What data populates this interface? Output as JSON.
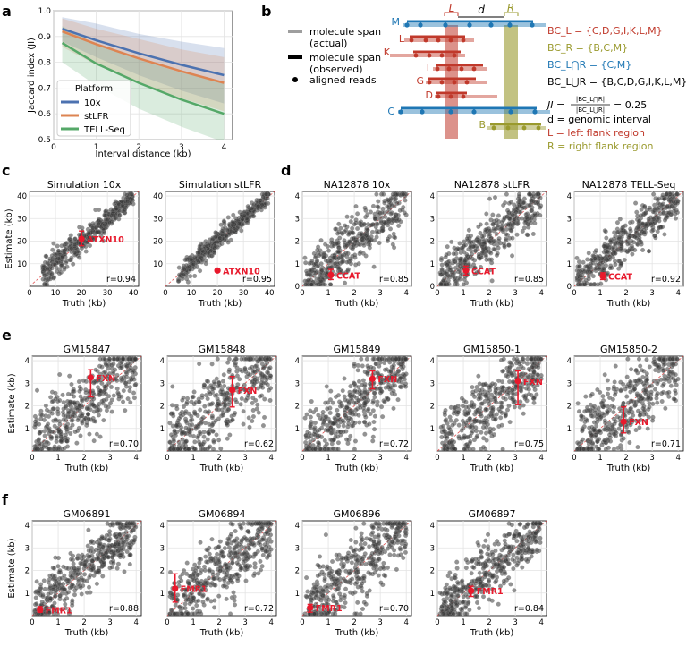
{
  "panel_labels": {
    "a": "a",
    "b": "b",
    "c": "c",
    "d": "d",
    "e": "e",
    "f": "f"
  },
  "chart_data": [
    {
      "id": "a",
      "type": "line",
      "xlabel": "Interval distance (kb)",
      "ylabel": "Jaccard index (JI)",
      "xlim": [
        0,
        4.2
      ],
      "ylim": [
        0.5,
        1.0
      ],
      "xticks": [
        0,
        1,
        2,
        3,
        4
      ],
      "yticks": [
        0.5,
        0.6,
        0.7,
        0.8,
        0.9,
        1.0
      ],
      "legend_title": "Platform",
      "legend_position": "lower-left",
      "x": [
        0.2,
        1.0,
        2.0,
        3.0,
        4.0
      ],
      "series": [
        {
          "name": "10x",
          "color": "#4c72b0",
          "values": [
            0.93,
            0.885,
            0.835,
            0.79,
            0.75
          ],
          "lower": [
            0.88,
            0.82,
            0.75,
            0.69,
            0.64
          ],
          "upper": [
            0.975,
            0.95,
            0.91,
            0.88,
            0.855
          ]
        },
        {
          "name": "stLFR",
          "color": "#dd8452",
          "values": [
            0.92,
            0.87,
            0.815,
            0.765,
            0.72
          ],
          "lower": [
            0.86,
            0.79,
            0.72,
            0.66,
            0.61
          ],
          "upper": [
            0.97,
            0.93,
            0.89,
            0.85,
            0.82
          ]
        },
        {
          "name": "TELL-Seq",
          "color": "#55a868",
          "values": [
            0.875,
            0.795,
            0.72,
            0.655,
            0.6
          ],
          "lower": [
            0.8,
            0.71,
            0.62,
            0.55,
            0.49
          ],
          "upper": [
            0.94,
            0.87,
            0.81,
            0.76,
            0.72
          ]
        }
      ]
    },
    {
      "id": "c1",
      "type": "scatter",
      "title": "Simulation 10x",
      "xlabel": "Truth (kb)",
      "ylabel": "Estimate (kb)",
      "xlim": [
        0,
        42
      ],
      "ylim": [
        0,
        42
      ],
      "xticks": [
        0,
        10,
        20,
        30,
        40
      ],
      "yticks": [
        10,
        20,
        30,
        40
      ],
      "r": "r=0.94",
      "gene": "ATXN10",
      "point": [
        20,
        21
      ],
      "err": [
        18,
        24.5
      ],
      "spread": 0.11
    },
    {
      "id": "c2",
      "type": "scatter",
      "title": "Simulation stLFR",
      "xlabel": "Truth (kb)",
      "ylabel": "",
      "xlim": [
        0,
        42
      ],
      "ylim": [
        0,
        42
      ],
      "xticks": [
        0,
        10,
        20,
        30,
        40
      ],
      "yticks": [
        10,
        20,
        30,
        40
      ],
      "r": "r=0.95",
      "gene": "ATXN10",
      "point": [
        20,
        7
      ],
      "err": null,
      "spread": 0.09
    },
    {
      "id": "d1",
      "type": "scatter",
      "title": "NA12878 10x",
      "xlabel": "Truth (kb)",
      "ylabel": "",
      "xlim": [
        0,
        4.2
      ],
      "ylim": [
        0,
        4.2
      ],
      "xticks": [
        0,
        1,
        2,
        3,
        4
      ],
      "yticks": [
        0,
        1,
        2,
        3,
        4
      ],
      "r": "r=0.85",
      "gene": "CCAT",
      "point": [
        1.1,
        0.5
      ],
      "err": [
        0.3,
        0.75
      ],
      "spread": 0.16
    },
    {
      "id": "d2",
      "type": "scatter",
      "title": "NA12878 stLFR",
      "xlabel": "Truth (kb)",
      "ylabel": "",
      "xlim": [
        0,
        4.2
      ],
      "ylim": [
        0,
        4.2
      ],
      "xticks": [
        0,
        1,
        2,
        3,
        4
      ],
      "yticks": [
        0,
        1,
        2,
        3,
        4
      ],
      "r": "r=0.85",
      "gene": "CCAT",
      "point": [
        1.1,
        0.7
      ],
      "err": [
        0.5,
        0.9
      ],
      "spread": 0.16
    },
    {
      "id": "d3",
      "type": "scatter",
      "title": "NA12878 TELL-Seq",
      "xlabel": "Truth (kb)",
      "ylabel": "",
      "xlim": [
        0,
        4.2
      ],
      "ylim": [
        0,
        4.2
      ],
      "xticks": [
        0,
        1,
        2,
        3,
        4
      ],
      "yticks": [
        0,
        1,
        2,
        3,
        4
      ],
      "r": "r=0.92",
      "gene": "CCAT",
      "point": [
        1.1,
        0.45
      ],
      "err": [
        0.3,
        0.6
      ],
      "spread": 0.12
    },
    {
      "id": "e1",
      "type": "scatter",
      "title": "GM15847",
      "xlabel": "Truth (kb)",
      "ylabel": "Estimate (kb)",
      "xlim": [
        0,
        4.2
      ],
      "ylim": [
        0,
        4.2
      ],
      "xticks": [
        0,
        1,
        2,
        3,
        4
      ],
      "yticks": [
        1,
        2,
        3,
        4
      ],
      "r": "r=0.70",
      "gene": "FXN",
      "point": [
        2.25,
        3.25
      ],
      "err": [
        2.4,
        3.6
      ],
      "spread": 0.22
    },
    {
      "id": "e2",
      "type": "scatter",
      "title": "GM15848",
      "xlabel": "Truth (kb)",
      "ylabel": "",
      "xlim": [
        0,
        4.2
      ],
      "ylim": [
        0,
        4.2
      ],
      "xticks": [
        0,
        1,
        2,
        3,
        4
      ],
      "yticks": [
        1,
        2,
        3,
        4
      ],
      "r": "r=0.62",
      "gene": "FXN",
      "point": [
        2.5,
        2.7
      ],
      "err": [
        1.95,
        3.3
      ],
      "spread": 0.25
    },
    {
      "id": "e3",
      "type": "scatter",
      "title": "GM15849",
      "xlabel": "Truth (kb)",
      "ylabel": "",
      "xlim": [
        0,
        4.2
      ],
      "ylim": [
        0,
        4.2
      ],
      "xticks": [
        0,
        1,
        2,
        3,
        4
      ],
      "yticks": [
        1,
        2,
        3,
        4
      ],
      "r": "r=0.72",
      "gene": "FXN",
      "point": [
        2.7,
        3.2
      ],
      "err": [
        2.75,
        3.55
      ],
      "spread": 0.21
    },
    {
      "id": "e4",
      "type": "scatter",
      "title": "GM15850-1",
      "xlabel": "Truth (kb)",
      "ylabel": "",
      "xlim": [
        0,
        4.2
      ],
      "ylim": [
        0,
        4.2
      ],
      "xticks": [
        0,
        1,
        2,
        3,
        4
      ],
      "yticks": [
        1,
        2,
        3,
        4
      ],
      "r": "r=0.75",
      "gene": "FXN",
      "point": [
        3.1,
        3.1
      ],
      "err": [
        2.05,
        3.55
      ],
      "spread": 0.2
    },
    {
      "id": "e5",
      "type": "scatter",
      "title": "GM15850-2",
      "xlabel": "Truth (kb)",
      "ylabel": "",
      "xlim": [
        0,
        4.2
      ],
      "ylim": [
        0,
        4.2
      ],
      "xticks": [
        0,
        1,
        2,
        3,
        4
      ],
      "yticks": [
        1,
        2,
        3,
        4
      ],
      "r": "r=0.71",
      "gene": "FXN",
      "point": [
        1.9,
        1.3
      ],
      "err": [
        0.8,
        1.95
      ],
      "spread": 0.21
    },
    {
      "id": "f1",
      "type": "scatter",
      "title": "GM06891",
      "xlabel": "Truth (kb)",
      "ylabel": "Estimate (kb)",
      "xlim": [
        0,
        4.2
      ],
      "ylim": [
        0,
        4.2
      ],
      "xticks": [
        0,
        1,
        2,
        3,
        4
      ],
      "yticks": [
        1,
        2,
        3,
        4
      ],
      "r": "r=0.88",
      "gene": "FMR1",
      "point": [
        0.3,
        0.25
      ],
      "err": [
        0.15,
        0.4
      ],
      "spread": 0.15
    },
    {
      "id": "f2",
      "type": "scatter",
      "title": "GM06894",
      "xlabel": "Truth (kb)",
      "ylabel": "",
      "xlim": [
        0,
        4.2
      ],
      "ylim": [
        0,
        4.2
      ],
      "xticks": [
        0,
        1,
        2,
        3,
        4
      ],
      "yticks": [
        1,
        2,
        3,
        4
      ],
      "r": "r=0.72",
      "gene": "FMR1",
      "point": [
        0.3,
        1.2
      ],
      "err": [
        0.6,
        1.85
      ],
      "spread": 0.21
    },
    {
      "id": "f3",
      "type": "scatter",
      "title": "GM06896",
      "xlabel": "Truth (kb)",
      "ylabel": "",
      "xlim": [
        0,
        4.2
      ],
      "ylim": [
        0,
        4.2
      ],
      "xticks": [
        0,
        1,
        2,
        3,
        4
      ],
      "yticks": [
        1,
        2,
        3,
        4
      ],
      "r": "r=0.70",
      "gene": "FMR1",
      "point": [
        0.3,
        0.35
      ],
      "err": [
        0.15,
        0.5
      ],
      "spread": 0.23
    },
    {
      "id": "f4",
      "type": "scatter",
      "title": "GM06897",
      "xlabel": "Truth (kb)",
      "ylabel": "",
      "xlim": [
        0,
        4.2
      ],
      "ylim": [
        0,
        4.2
      ],
      "xticks": [
        0,
        1,
        2,
        3,
        4
      ],
      "yticks": [
        1,
        2,
        3,
        4
      ],
      "r": "r=0.84",
      "gene": "FMR1",
      "point": [
        1.3,
        1.1
      ],
      "err": [
        0.85,
        1.3
      ],
      "spread": 0.17
    }
  ],
  "schematic": {
    "legend": {
      "actual_line1": "molecule span",
      "actual_line2": "(actual)",
      "observed_line1": "molecule span",
      "observed_line2": "(observed)",
      "reads": "aligned reads"
    },
    "markers": {
      "L": "L",
      "d": "d",
      "R": "R"
    },
    "molecules": [
      "M",
      "L",
      "K",
      "I",
      "G",
      "D",
      "C",
      "B"
    ],
    "formulas": {
      "bcl": "BC_L = {C,D,G,I,K,L,M}",
      "bcr": "BC_R = {B,C,M}",
      "bcand": "BC_L⋂R = {C,M}",
      "bcor": "BC_L⋃R = {B,C,D,G,I,K,L,M}",
      "ji_lhs": "JI =",
      "ji_num": "|BC_L⋂R|",
      "ji_den": "|BC_L⋃R|",
      "ji_rhs": "= 0.25",
      "def_d": "d = genomic interval",
      "def_l": "L = left flank region",
      "def_r": "R = right flank region"
    },
    "colors": {
      "red": "#c0392b",
      "olive": "#9a9a2e",
      "blue": "#1f77b4",
      "black": "#000000"
    }
  }
}
